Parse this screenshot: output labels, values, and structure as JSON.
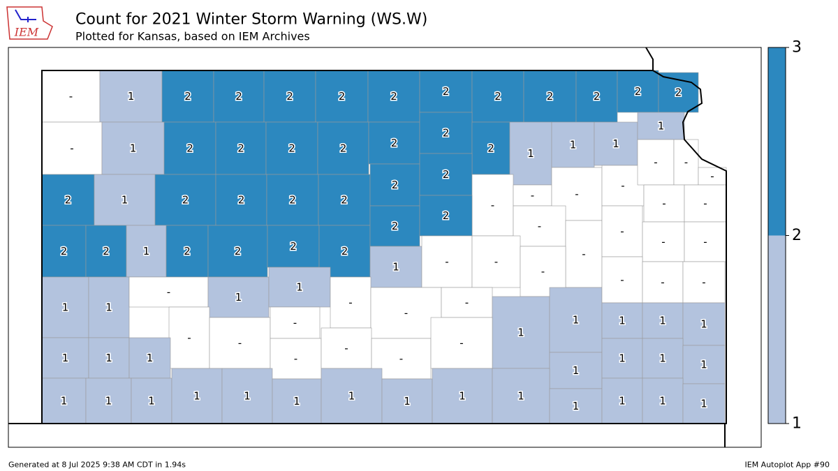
{
  "logo_text": "IEM",
  "title": "Count for 2021 Winter Storm Warning (WS.W)",
  "subtitle": "Plotted for Kansas, based on IEM Archives",
  "footer_left": "Generated at 8 Jul 2025 9:38 AM CDT in 1.94s",
  "footer_right": "IEM Autoplot App #90",
  "colorbar": {
    "ticks": [
      1,
      2,
      3
    ],
    "fill_colors": [
      "#ffffff",
      "#b3c3de",
      "#2c88bf"
    ]
  },
  "map": {
    "values": [
      0,
      1,
      2,
      2,
      2,
      2,
      2,
      2,
      2,
      2,
      2,
      2,
      2,
      0,
      1,
      2,
      2,
      2,
      2,
      2,
      2,
      2,
      1,
      1,
      1,
      1,
      2,
      1,
      2,
      2,
      2,
      2,
      2,
      2,
      0,
      0,
      0,
      0,
      0,
      0,
      0,
      0,
      0,
      2,
      2,
      1,
      2,
      2,
      2,
      2,
      2,
      2,
      0,
      0,
      0,
      0,
      0,
      1,
      0,
      0,
      0,
      1,
      1,
      0,
      1,
      1,
      0,
      0,
      0,
      1,
      1,
      0,
      0,
      0,
      1,
      1,
      1,
      0,
      0,
      0,
      0,
      0,
      0,
      0,
      1,
      1,
      1,
      1,
      1,
      1,
      1,
      1,
      1,
      1,
      1,
      1,
      1,
      1,
      1,
      1,
      1,
      1,
      1,
      1,
      1
    ],
    "value_labels": [
      "-",
      "1",
      "2",
      "2",
      "2",
      "2",
      "2",
      "2",
      "2",
      "2",
      "2",
      "2",
      "2",
      "-",
      "1",
      "2",
      "2",
      "2",
      "2",
      "2",
      "2",
      "2",
      "1",
      "1",
      "1",
      "1",
      "2",
      "1",
      "2",
      "2",
      "2",
      "2",
      "2",
      "2",
      "-",
      "-",
      "-",
      "-",
      "-",
      "-",
      "-",
      "-",
      "-",
      "2",
      "2",
      "1",
      "2",
      "2",
      "2",
      "2",
      "2",
      "2",
      "-",
      "-",
      "-",
      "-",
      "-",
      "1",
      "-",
      "-",
      "-",
      "1",
      "1",
      "-",
      "1",
      "1",
      "-",
      "-",
      "-",
      "1",
      "1",
      "-",
      "-",
      "-",
      "1",
      "1",
      "1",
      "-",
      "-",
      "-",
      "-",
      "-",
      "-",
      "-",
      "1",
      "1",
      "1",
      "1",
      "1",
      "1",
      "1",
      "1",
      "1",
      "1",
      "1",
      "1",
      "1",
      "1",
      "1",
      "1",
      "1",
      "1",
      "1",
      "1",
      "1"
    ]
  }
}
